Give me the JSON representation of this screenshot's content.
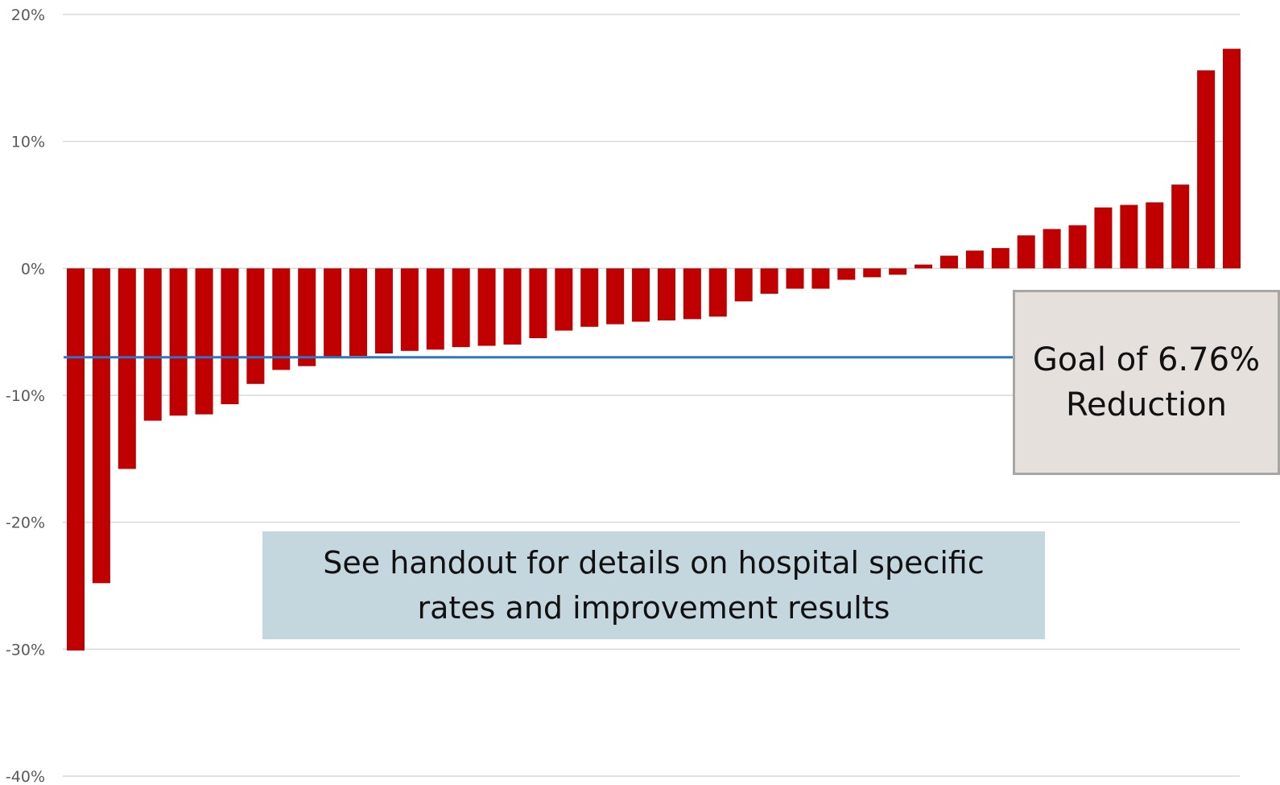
{
  "chart_data": {
    "type": "bar",
    "title": "",
    "xlabel": "",
    "ylabel": "",
    "ylim": [
      -40,
      20
    ],
    "yticks": [
      {
        "value": 20,
        "label": "20%"
      },
      {
        "value": 10,
        "label": "10%"
      },
      {
        "value": 0,
        "label": "0%"
      },
      {
        "value": -10,
        "label": "-10%"
      },
      {
        "value": -20,
        "label": "-20%"
      },
      {
        "value": -30,
        "label": "-30%"
      },
      {
        "value": -40,
        "label": "-40%"
      }
    ],
    "grid": true,
    "bar_color": "#c00000",
    "reference_line": {
      "value": -7.0,
      "color": "#2f75c5"
    },
    "values": [
      -30.1,
      -24.8,
      -15.8,
      -12.0,
      -11.6,
      -11.5,
      -10.7,
      -9.1,
      -8.0,
      -7.7,
      -7.0,
      -6.9,
      -6.7,
      -6.5,
      -6.4,
      -6.2,
      -6.1,
      -6.0,
      -5.5,
      -4.9,
      -4.6,
      -4.4,
      -4.2,
      -4.1,
      -4.0,
      -3.8,
      -2.6,
      -2.0,
      -1.6,
      -1.6,
      -0.9,
      -0.7,
      -0.5,
      0.3,
      1.0,
      1.4,
      1.6,
      2.6,
      3.1,
      3.4,
      4.8,
      5.0,
      5.2,
      6.6,
      15.6,
      17.3
    ]
  },
  "annotations": {
    "goal": "Goal of 6.76%\nReduction",
    "handout": "See handout for details on hospital specific\nrates and  improvement results"
  }
}
